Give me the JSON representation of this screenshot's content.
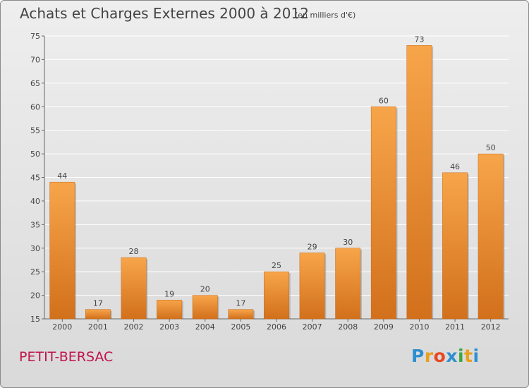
{
  "header": {
    "title": "Achats et Charges Externes 2000 à 2012",
    "subtitle": "(en milliers d'€)"
  },
  "footer": {
    "location": "PETIT-BERSAC",
    "logo": "Proxiti",
    "logo_colors": [
      "#2e8fd0",
      "#e8a020",
      "#e84820",
      "#2e8fd0",
      "#3aa840",
      "#e8a020",
      "#2e8fd0"
    ]
  },
  "colors": {
    "bar_top": "#f7a54a",
    "bar_bottom": "#d2701c",
    "grid": "#ffffff",
    "text": "#444444"
  },
  "chart_data": {
    "type": "bar",
    "title": "Achats et Charges Externes 2000 à 2012",
    "subtitle": "(en milliers d'€)",
    "categories": [
      "2000",
      "2001",
      "2002",
      "2003",
      "2004",
      "2005",
      "2006",
      "2007",
      "2008",
      "2009",
      "2010",
      "2011",
      "2012"
    ],
    "values": [
      44,
      17,
      28,
      19,
      20,
      17,
      25,
      29,
      30,
      60,
      73,
      46,
      50
    ],
    "ylim": [
      15,
      75
    ],
    "yticks": [
      15,
      20,
      25,
      30,
      35,
      40,
      45,
      50,
      55,
      60,
      65,
      70,
      75
    ],
    "grid": true,
    "xlabel": "",
    "ylabel": ""
  }
}
